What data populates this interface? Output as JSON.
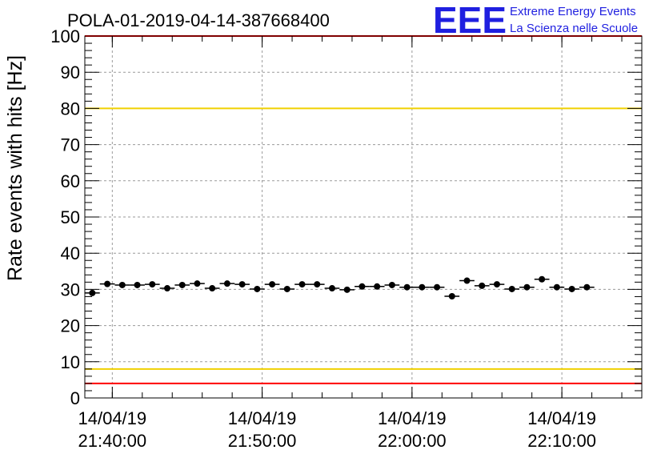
{
  "chart_data": {
    "type": "scatter",
    "title": "POLA-01-2019-04-14-387668400",
    "ylabel": "Rate events with hits [Hz]",
    "xlabel": "",
    "ylim": [
      0,
      100
    ],
    "xlim": [
      "2019-04-14 21:38:10",
      "2019-04-14 22:15:20"
    ],
    "y_ticks": [
      "0",
      "10",
      "20",
      "30",
      "40",
      "50",
      "60",
      "70",
      "80",
      "90",
      "100"
    ],
    "x_ticks": [
      {
        "t": "2019-04-14 21:40:00",
        "line1": "14/04/19",
        "line2": "21:40:00"
      },
      {
        "t": "2019-04-14 21:50:00",
        "line1": "14/04/19",
        "line2": "21:50:00"
      },
      {
        "t": "2019-04-14 22:00:00",
        "line1": "14/04/19",
        "line2": "22:00:00"
      },
      {
        "t": "2019-04-14 22:10:00",
        "line1": "14/04/19",
        "line2": "22:10:00"
      }
    ],
    "grid": true,
    "bin_width_s": 60,
    "reference_lines": [
      {
        "y": 100,
        "color": "#ff0000"
      },
      {
        "y": 80,
        "color": "#f0d000"
      },
      {
        "y": 8,
        "color": "#f0d000"
      },
      {
        "y": 4,
        "color": "#ff0000"
      }
    ],
    "series": [
      {
        "color": "#000000",
        "points": [
          {
            "x": "2019-04-14 21:38:40",
            "y": 29.0
          },
          {
            "x": "2019-04-14 21:39:40",
            "y": 31.5
          },
          {
            "x": "2019-04-14 21:40:40",
            "y": 31.2
          },
          {
            "x": "2019-04-14 21:41:40",
            "y": 31.2
          },
          {
            "x": "2019-04-14 21:42:40",
            "y": 31.4
          },
          {
            "x": "2019-04-14 21:43:40",
            "y": 30.3
          },
          {
            "x": "2019-04-14 21:44:40",
            "y": 31.2
          },
          {
            "x": "2019-04-14 21:45:40",
            "y": 31.6
          },
          {
            "x": "2019-04-14 21:46:40",
            "y": 30.3
          },
          {
            "x": "2019-04-14 21:47:40",
            "y": 31.6
          },
          {
            "x": "2019-04-14 21:48:40",
            "y": 31.4
          },
          {
            "x": "2019-04-14 21:49:40",
            "y": 30.1
          },
          {
            "x": "2019-04-14 21:50:40",
            "y": 31.4
          },
          {
            "x": "2019-04-14 21:51:40",
            "y": 30.1
          },
          {
            "x": "2019-04-14 21:52:40",
            "y": 31.4
          },
          {
            "x": "2019-04-14 21:53:40",
            "y": 31.4
          },
          {
            "x": "2019-04-14 21:54:40",
            "y": 30.3
          },
          {
            "x": "2019-04-14 21:55:40",
            "y": 29.9
          },
          {
            "x": "2019-04-14 21:56:40",
            "y": 30.8
          },
          {
            "x": "2019-04-14 21:57:40",
            "y": 30.8
          },
          {
            "x": "2019-04-14 21:58:40",
            "y": 31.2
          },
          {
            "x": "2019-04-14 21:59:40",
            "y": 30.6
          },
          {
            "x": "2019-04-14 22:00:40",
            "y": 30.6
          },
          {
            "x": "2019-04-14 22:01:40",
            "y": 30.6
          },
          {
            "x": "2019-04-14 22:02:40",
            "y": 28.1
          },
          {
            "x": "2019-04-14 22:03:40",
            "y": 32.4
          },
          {
            "x": "2019-04-14 22:04:40",
            "y": 31.0
          },
          {
            "x": "2019-04-14 22:05:40",
            "y": 31.4
          },
          {
            "x": "2019-04-14 22:06:40",
            "y": 30.1
          },
          {
            "x": "2019-04-14 22:07:40",
            "y": 30.6
          },
          {
            "x": "2019-04-14 22:08:40",
            "y": 32.8
          },
          {
            "x": "2019-04-14 22:09:40",
            "y": 30.6
          },
          {
            "x": "2019-04-14 22:10:40",
            "y": 30.1
          },
          {
            "x": "2019-04-14 22:11:40",
            "y": 30.6
          }
        ]
      }
    ]
  },
  "logo": {
    "mark": "EEE",
    "line1": "Extreme Energy Events",
    "line2": "La Scienza nelle Scuole"
  }
}
